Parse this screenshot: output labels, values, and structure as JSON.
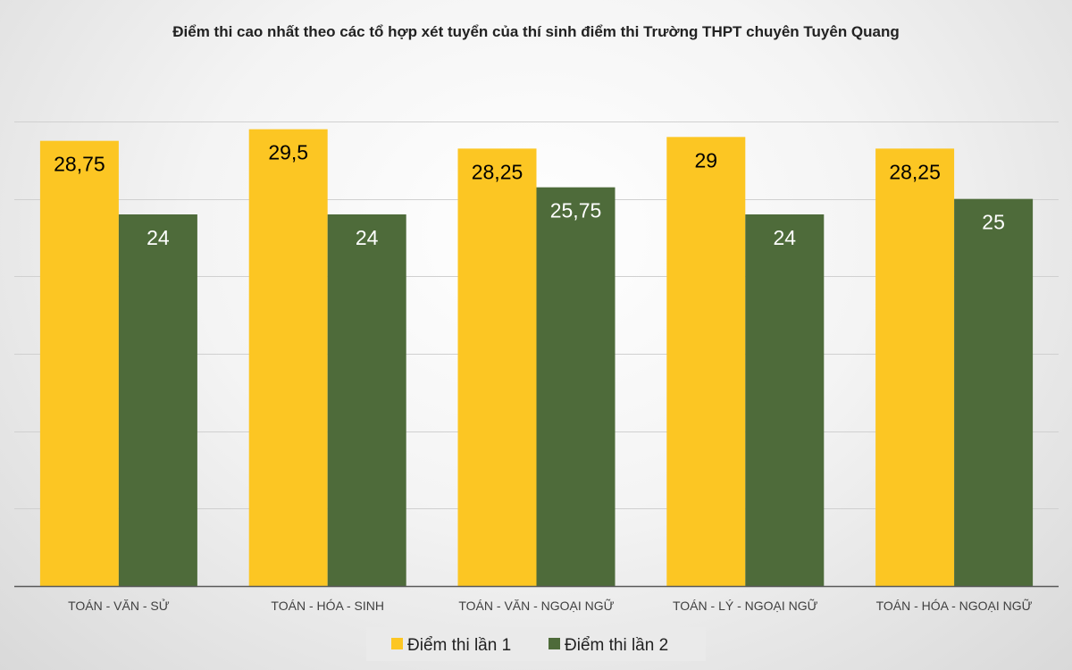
{
  "chart_data": {
    "type": "bar",
    "title": "Điểm thi cao nhất theo các tổ hợp xét tuyển của thí sinh điểm thi Trường THPT chuyên Tuyên Quang",
    "categories": [
      "TOÁN - VĂN - SỬ",
      "TOÁN - HÓA - SINH",
      "TOÁN - VĂN - NGOẠI NGỮ",
      "TOÁN - LÝ - NGOẠI NGỮ",
      "TOÁN - HÓA - NGOẠI NGỮ"
    ],
    "series": [
      {
        "name": "Điểm thi lần 1",
        "color": "#FCC623",
        "values": [
          28.75,
          29.5,
          28.25,
          29,
          28.25
        ],
        "labels": [
          "28,75",
          "29,5",
          "28,25",
          "29",
          "28,25"
        ],
        "label_color": "#000000"
      },
      {
        "name": "Điểm thi lần 2",
        "color": "#4E6B3A",
        "values": [
          24,
          24,
          25.75,
          24,
          25
        ],
        "labels": [
          "24",
          "24",
          "25,75",
          "24",
          "25"
        ],
        "label_color": "#ffffff"
      }
    ],
    "ylim": [
      0,
      30
    ],
    "grid": true,
    "legend": "bottom",
    "xlabel": "",
    "ylabel": ""
  }
}
